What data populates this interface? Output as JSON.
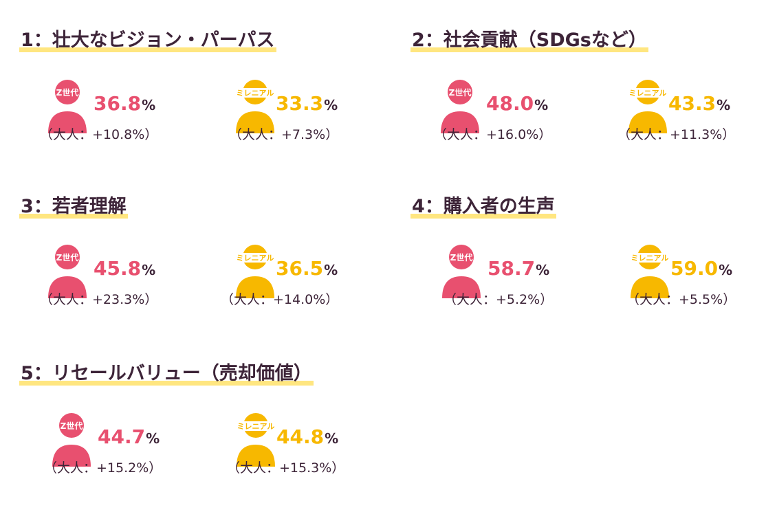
{
  "colors": {
    "genz": "#e8506f",
    "millennial": "#f7b800",
    "text": "#3d2438",
    "underline": "#ffe680"
  },
  "icon_labels": {
    "genz": "Z世代",
    "millennial": "ミレニアル"
  },
  "unit": "%",
  "sections": [
    {
      "title": "1：壮大なビジョン・パーパス",
      "genz": {
        "value": "36.8",
        "diff": "（大人：+10.8%）"
      },
      "millennial": {
        "value": "33.3",
        "diff": "（大人：+7.3%）"
      }
    },
    {
      "title": "2：社会貢献（SDGsなど）",
      "genz": {
        "value": "48.0",
        "diff": "（大人：+16.0%）"
      },
      "millennial": {
        "value": "43.3",
        "diff": "（大人：+11.3%）"
      }
    },
    {
      "title": "3：若者理解",
      "genz": {
        "value": "45.8",
        "diff": "（大人：+23.3%）"
      },
      "millennial": {
        "value": "36.5",
        "diff": "（大人：+14.0%）"
      }
    },
    {
      "title": "4：購入者の生声",
      "genz": {
        "value": "58.7",
        "diff": "（大人：+5.2%）"
      },
      "millennial": {
        "value": "59.0",
        "diff": "（大人：+5.5%）"
      }
    },
    {
      "title": "5：リセールバリュー（売却価値）",
      "genz": {
        "value": "44.7",
        "diff": "（大人：+15.2%）"
      },
      "millennial": {
        "value": "44.8",
        "diff": "（大人：+15.3%）"
      }
    }
  ]
}
